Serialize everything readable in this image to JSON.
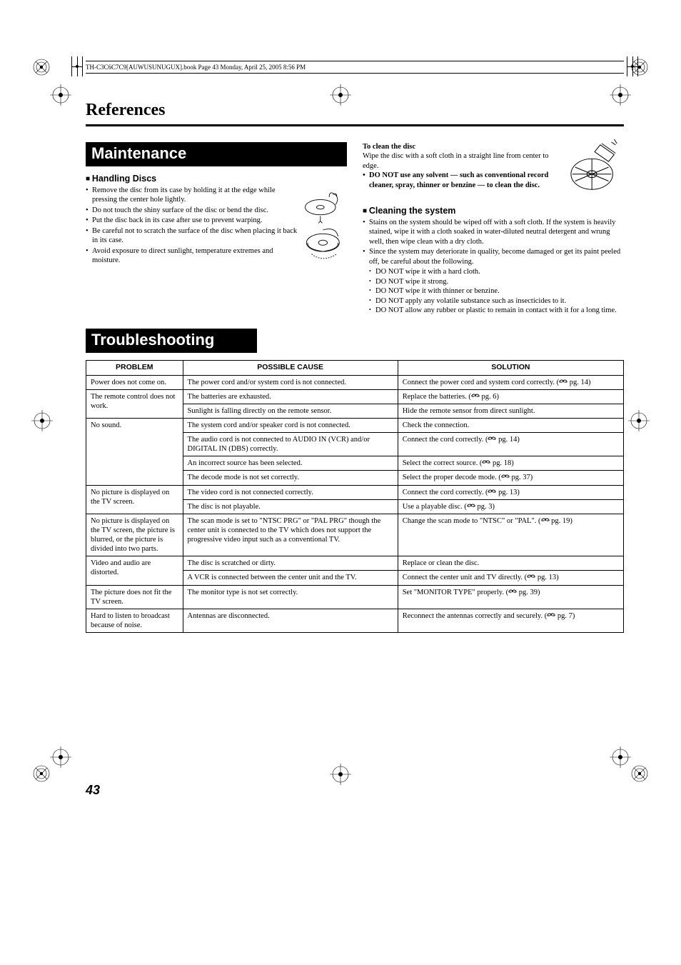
{
  "header_strip": "TH-C3C6C7C9[AUWUSUNUGUX].book  Page 43  Monday, April 25, 2005  8:56 PM",
  "refs_title": "References",
  "page_number": "43",
  "maintenance": {
    "title": "Maintenance",
    "handling": {
      "heading": "Handling Discs",
      "items": [
        "Remove the disc from its case by holding it at the edge while pressing the center hole lightly.",
        "Do not touch the shiny surface of the disc or bend the disc.",
        "Put the disc back in its case after use to prevent warping.",
        "Be careful not to scratch the surface of the disc when placing it back in its case.",
        "Avoid exposure to direct sunlight, temperature extremes and moisture."
      ]
    },
    "to_clean_disc": {
      "heading": "To clean the disc",
      "line1": "Wipe the disc with a soft cloth in a straight line from center to edge.",
      "warn": "DO NOT use any solvent — such as conventional record cleaner, spray, thinner or benzine — to clean the disc."
    },
    "cleaning_system": {
      "heading": "Cleaning the system",
      "items": [
        "Stains on the system should be wiped off with a soft cloth. If the system is heavily stained, wipe it with a cloth soaked in water-diluted neutral detergent and wrung well, then wipe clean with a dry cloth.",
        "Since the system may deteriorate in quality, become damaged or get its paint peeled off, be careful about the following."
      ],
      "subitems": [
        "DO NOT wipe it with a hard cloth.",
        "DO NOT wipe it strong.",
        "DO NOT wipe it with thinner or benzine.",
        "DO NOT apply any volatile substance such as insecticides to it.",
        "DO NOT allow any rubber or plastic to remain in contact with it for a long time."
      ]
    }
  },
  "troubleshooting": {
    "title": "Troubleshooting",
    "columns": [
      "PROBLEM",
      "POSSIBLE CAUSE",
      "SOLUTION"
    ],
    "groups": [
      {
        "problem": "Power does not come on.",
        "rows": [
          {
            "cause": "The power cord and/or system cord is not connected.",
            "solution": "Connect the power cord and system cord correctly. (",
            "ref": "pg. 14)"
          }
        ]
      },
      {
        "problem": "The remote control does not work.",
        "rows": [
          {
            "cause": "The batteries are exhausted.",
            "solution": "Replace the batteries. (",
            "ref": "pg. 6)"
          },
          {
            "cause": "Sunlight is falling directly on the remote sensor.",
            "solution": "Hide the remote sensor from direct sunlight."
          }
        ]
      },
      {
        "problem": "No sound.",
        "rows": [
          {
            "cause": "The system cord and/or speaker cord is not connected.",
            "solution": "Check the connection."
          },
          {
            "cause": "The audio cord is not connected to AUDIO IN (VCR) and/or DIGITAL IN (DBS) correctly.",
            "solution": "Connect the cord correctly. (",
            "ref": "pg. 14)"
          },
          {
            "cause": "An incorrect source has been selected.",
            "solution": "Select the correct source. (",
            "ref": "pg. 18)"
          },
          {
            "cause": "The decode mode is not set correctly.",
            "solution": "Select the proper decode mode. (",
            "ref": "pg. 37)"
          }
        ]
      },
      {
        "problem": "No picture is displayed on the TV screen.",
        "rows": [
          {
            "cause": "The video cord is not connected correctly.",
            "solution": "Connect the cord correctly. (",
            "ref": "pg. 13)"
          },
          {
            "cause": "The disc is not playable.",
            "solution": "Use a playable disc. (",
            "ref": "pg. 3)"
          }
        ]
      },
      {
        "problem": "No picture is displayed on the TV screen, the picture is blurred, or the picture is divided into two parts.",
        "rows": [
          {
            "cause": "The scan mode is set to \"NTSC PRG\" or \"PAL PRG\" though the center unit is connected to the TV which does not support the progressive video input such as a conventional TV.",
            "solution": "Change the scan mode to \"NTSC\" or \"PAL\". (",
            "ref": "pg. 19)"
          }
        ]
      },
      {
        "problem": "Video and audio are distorted.",
        "rows": [
          {
            "cause": "The disc is scratched or dirty.",
            "solution": "Replace or clean the disc."
          },
          {
            "cause": "A VCR is connected between the center unit and the TV.",
            "solution": "Connect the center unit and TV directly. (",
            "ref": "pg. 13)"
          }
        ]
      },
      {
        "problem": "The picture does not fit the TV screen.",
        "rows": [
          {
            "cause": "The monitor type is not set correctly.",
            "solution": "Set \"MONITOR TYPE\" properly. (",
            "ref": "pg. 39)"
          }
        ]
      },
      {
        "problem": "Hard to listen to broadcast because of noise.",
        "rows": [
          {
            "cause": "Antennas are disconnected.",
            "solution": "Reconnect the antennas correctly and securely. (",
            "ref": "pg. 7)"
          }
        ]
      }
    ]
  }
}
